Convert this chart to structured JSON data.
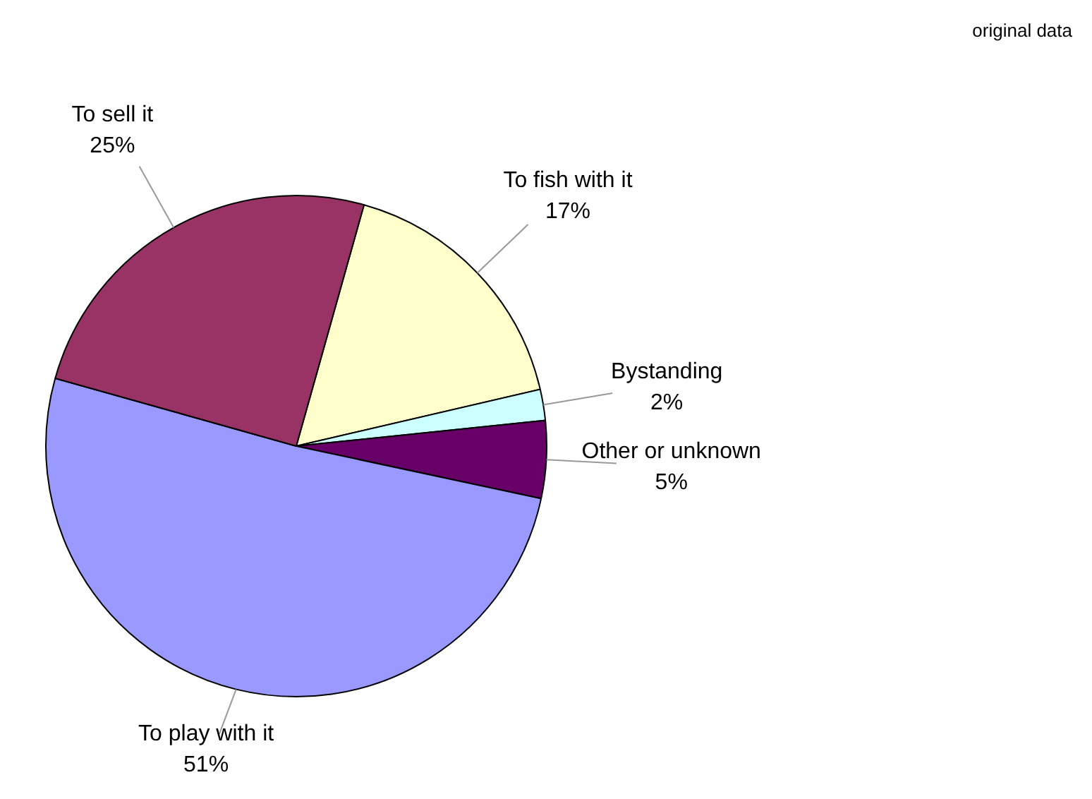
{
  "chart_data": {
    "type": "pie",
    "categories": [
      "To fish with it",
      "Bystanding",
      "Other or unknown",
      "To play with it",
      "To sell it"
    ],
    "values": [
      17,
      2,
      5,
      51,
      25
    ],
    "colors": [
      "#ffffcc",
      "#ccffff",
      "#660066",
      "#9999ff",
      "#993366"
    ],
    "value_labels": [
      "17%",
      "2%",
      "5%",
      "51%",
      "25%"
    ],
    "annotations": [
      "original data"
    ],
    "legend": false
  }
}
